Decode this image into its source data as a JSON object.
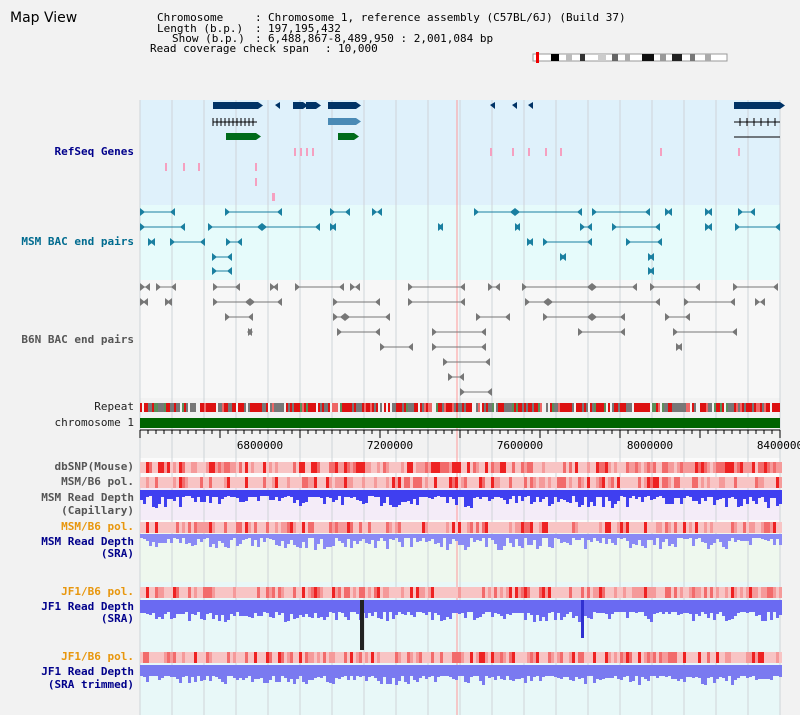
{
  "title": "Map View",
  "info": {
    "chromosome_label": "Chromosome",
    "chromosome_value": "Chromosome 1, reference assembly (C57BL/6J) (Build 37)",
    "length_label": "Length (b.p.)",
    "length_value": "197,195,432",
    "show_label": "Show (b.p.)",
    "show_value": "6,488,867-8,489,950 : 2,001,084 bp",
    "coverage_label": "Read coverage check span",
    "coverage_value": "10,000"
  },
  "tracks": {
    "refseq": "RefSeq Genes",
    "msm_bac": "MSM BAC end pairs",
    "b6n_bac": "B6N BAC end pairs",
    "repeat": "Repeat",
    "chromosome": "chromosome 1",
    "dbsnp": "dbSNP(Mouse)",
    "msm_b6_pol_1": "MSM/B6 pol.",
    "msm_read_depth_cap_1": "MSM Read Depth",
    "msm_read_depth_cap_2": "(Capillary)",
    "msm_b6_pol_2": "MSM/B6 pol.",
    "msm_read_depth_sra_1": "MSM Read Depth",
    "msm_read_depth_sra_2": "(SRA)",
    "jf1_b6_pol_1": "JF1/B6 pol.",
    "jf1_read_depth_sra_1": "JF1 Read Depth",
    "jf1_read_depth_sra_2": "(SRA)",
    "jf1_b6_pol_2": "JF1/B6 pol.",
    "jf1_read_depth_trim_1": "JF1 Read Depth",
    "jf1_read_depth_trim_2": "(SRA trimmed)"
  },
  "axis": {
    "ticks": [
      "6800000",
      "7200000",
      "7600000",
      "8000000",
      "8400000"
    ]
  },
  "colors": {
    "refseq_bg": "#dff1fb",
    "msm_bg": "#e6fbfb",
    "gene_navy": "#003366",
    "gene_blue": "#4a8ab5",
    "gene_green": "#006b1a",
    "bac_teal": "#1a7fa0",
    "bac_gray": "#777777",
    "chromosome_green": "#006400",
    "depth_blue": "#3333ee",
    "pol_red": "#ee3333"
  }
}
